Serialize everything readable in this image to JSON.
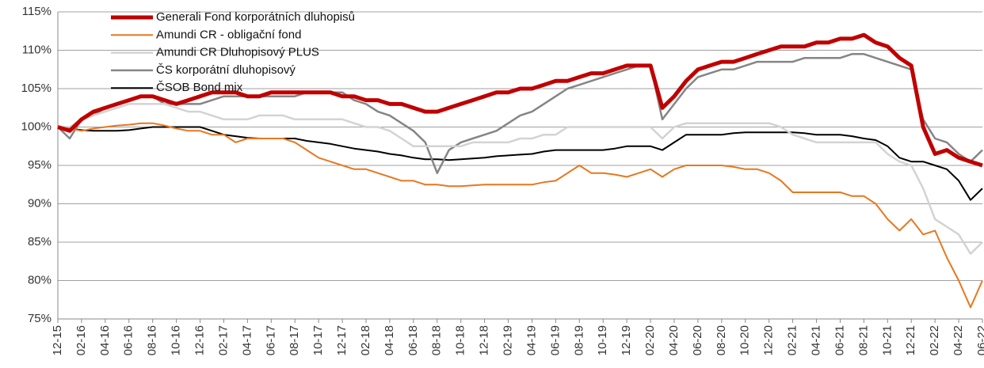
{
  "chart_data": {
    "type": "line",
    "categories": [
      "12-15",
      null,
      "02-16",
      null,
      "04-16",
      null,
      "06-16",
      null,
      "08-16",
      null,
      "10-16",
      null,
      "12-16",
      null,
      "02-17",
      null,
      "04-17",
      null,
      "06-17",
      null,
      "08-17",
      null,
      "10-17",
      null,
      "12-17",
      null,
      "02-18",
      null,
      "04-18",
      null,
      "06-18",
      null,
      "08-18",
      null,
      "10-18",
      null,
      "12-18",
      null,
      "02-19",
      null,
      "04-19",
      null,
      "06-19",
      null,
      "08-19",
      null,
      "10-19",
      null,
      "12-19",
      null,
      "02-20",
      null,
      "04-20",
      null,
      "06-20",
      null,
      "08-20",
      null,
      "10-20",
      null,
      "12-20",
      null,
      "02-21",
      null,
      "04-21",
      null,
      "06-21",
      null,
      "08-21",
      null,
      "10-21",
      null,
      "12-21",
      null,
      "02-22",
      null,
      "04-22",
      null,
      "06-22"
    ],
    "series": [
      {
        "name": "Generali Fond korporátních dluhopisů",
        "color": "#c00000",
        "values": [
          100,
          99.5,
          101,
          102,
          102.5,
          103,
          103.5,
          104,
          104,
          103.5,
          103,
          103.5,
          104,
          104.5,
          104.5,
          104.5,
          104,
          104,
          104.5,
          104.5,
          104.5,
          104.5,
          104.5,
          104.5,
          104,
          104,
          103.5,
          103.5,
          103,
          103,
          102.5,
          102,
          102,
          102.5,
          103,
          103.5,
          104,
          104.5,
          104.5,
          105,
          105,
          105.5,
          106,
          106,
          106.5,
          107,
          107,
          107.5,
          108,
          108,
          108,
          102.5,
          104,
          106,
          107.5,
          108,
          108.5,
          108.5,
          109,
          109.5,
          110,
          110.5,
          110.5,
          110.5,
          111,
          111,
          111.5,
          111.5,
          112,
          111,
          110.5,
          109,
          108,
          100,
          96.5,
          97,
          96,
          95.5,
          95
        ]
      },
      {
        "name": "Amundi CR - obligační fond",
        "color": "#e8771e",
        "values": [
          100,
          99.8,
          99.5,
          99.8,
          100,
          100.2,
          100.3,
          100.5,
          100.5,
          100.2,
          99.8,
          99.5,
          99.5,
          99,
          99,
          98,
          98.5,
          98.5,
          98.5,
          98.5,
          98,
          97,
          96,
          95.5,
          95,
          94.5,
          94.5,
          94,
          93.5,
          93,
          93,
          92.5,
          92.5,
          92.3,
          92.3,
          92.4,
          92.5,
          92.5,
          92.5,
          92.5,
          92.5,
          92.8,
          93,
          94,
          95,
          94,
          94,
          93.8,
          93.5,
          94,
          94.5,
          93.5,
          94.5,
          95,
          95,
          95,
          95,
          94.8,
          94.5,
          94.5,
          94,
          93,
          91.5,
          91.5,
          91.5,
          91.5,
          91.5,
          91,
          91,
          90,
          88,
          86.5,
          88,
          86,
          86.5,
          83,
          80,
          76.5,
          80
        ]
      },
      {
        "name": "Amundi CR Dluhopisový PLUS",
        "color": "#d3d3d3",
        "values": [
          100,
          100,
          101,
          101.5,
          102,
          102.5,
          103,
          103,
          103,
          103,
          102.5,
          102,
          102,
          101.5,
          101,
          101,
          101,
          101.5,
          101.5,
          101.5,
          101,
          101,
          101,
          101,
          101,
          100.5,
          100,
          100,
          99.5,
          98.5,
          97.5,
          97.5,
          97.5,
          97.5,
          97.5,
          98,
          98,
          98,
          98,
          98.5,
          98.5,
          99,
          99,
          100,
          100,
          100,
          100,
          100,
          100,
          100,
          100,
          98.5,
          100,
          100.5,
          100.5,
          100.5,
          100.5,
          100.5,
          100.5,
          100.5,
          100.5,
          100,
          99,
          98.5,
          98,
          98,
          98,
          98,
          98,
          98,
          96.5,
          95.5,
          95,
          92,
          88,
          87,
          86,
          83.5,
          85
        ]
      },
      {
        "name": "ČS korporátní dluhopisový",
        "color": "#858585",
        "values": [
          100,
          98.5,
          101,
          101.5,
          102.5,
          103,
          103.5,
          104,
          104,
          103,
          103,
          103,
          103,
          103.5,
          104,
          104,
          104,
          104,
          104,
          104,
          104,
          104.5,
          104.5,
          104.5,
          104.5,
          103.5,
          103,
          102,
          101.5,
          100.5,
          99.5,
          98,
          94,
          97,
          98,
          98.5,
          99,
          99.5,
          100.5,
          101.5,
          102,
          103,
          104,
          105,
          105.5,
          106,
          106.5,
          107,
          107.5,
          108,
          108,
          101,
          103,
          105,
          106.5,
          107,
          107.5,
          107.5,
          108,
          108.5,
          108.5,
          108.5,
          108.5,
          109,
          109,
          109,
          109,
          109.5,
          109.5,
          109,
          108.5,
          108,
          107.5,
          101,
          98.5,
          98,
          96.5,
          95.5,
          97
        ]
      },
      {
        "name": "ČSOB Bond mix",
        "color": "#000000",
        "values": [
          100,
          99.8,
          99.6,
          99.5,
          99.5,
          99.5,
          99.6,
          99.8,
          100,
          100,
          100,
          100,
          100,
          99.5,
          99,
          98.8,
          98.6,
          98.5,
          98.5,
          98.5,
          98.5,
          98.2,
          98,
          97.8,
          97.5,
          97.2,
          97,
          96.8,
          96.5,
          96.3,
          96,
          95.8,
          95.8,
          95.7,
          95.8,
          95.9,
          96,
          96.2,
          96.3,
          96.4,
          96.5,
          96.8,
          97,
          97,
          97,
          97,
          97,
          97.2,
          97.5,
          97.5,
          97.5,
          97,
          98,
          99,
          99,
          99,
          99,
          99.2,
          99.3,
          99.3,
          99.3,
          99.3,
          99.3,
          99.2,
          99,
          99,
          99,
          98.8,
          98.5,
          98.3,
          97.5,
          96,
          95.5,
          95.5,
          95,
          94.5,
          93,
          90.5,
          92
        ]
      }
    ],
    "widths": [
      5,
      2,
      2.5,
      2.5,
      2
    ],
    "ylim": [
      75,
      115
    ],
    "yticks": [
      {
        "value": 75,
        "label": "75%"
      },
      {
        "value": 80,
        "label": "80%"
      },
      {
        "value": 85,
        "label": "85%"
      },
      {
        "value": 90,
        "label": "90%"
      },
      {
        "value": 95,
        "label": "95%"
      },
      {
        "value": 100,
        "label": "100%"
      },
      {
        "value": 105,
        "label": "105%"
      },
      {
        "value": 110,
        "label": "110%"
      },
      {
        "value": 115,
        "label": "115%"
      }
    ],
    "grid": true,
    "legend": "top-left"
  }
}
